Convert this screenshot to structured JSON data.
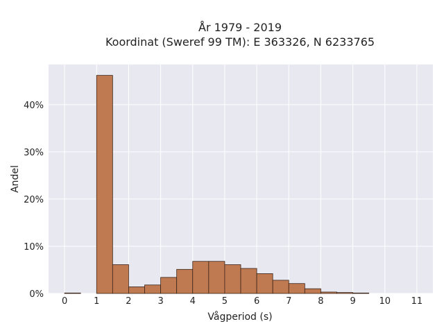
{
  "chart_data": {
    "type": "bar",
    "title_lines": [
      "År 1979 - 2019",
      "Koordinat (Sweref 99 TM): E 363326, N 6233765"
    ],
    "xlabel": "Vågperiod (s)",
    "ylabel": "Andel",
    "bin_width": 0.5,
    "bin_edges": [
      0,
      0.5,
      1,
      1.5,
      2,
      2.5,
      3,
      3.5,
      4,
      4.5,
      5,
      5.5,
      6,
      6.5,
      7,
      7.5,
      8,
      8.5,
      9,
      9.5
    ],
    "values": [
      0.1,
      0,
      46.2,
      6.1,
      1.4,
      1.8,
      3.4,
      5.1,
      6.8,
      6.8,
      6.1,
      5.3,
      4.2,
      2.8,
      2.1,
      1.0,
      0.3,
      0.2,
      0.1
    ],
    "xlim": [
      -0.5,
      11.5
    ],
    "ylim": [
      0,
      48.5
    ],
    "x_ticks": [
      "0",
      "1",
      "2",
      "3",
      "4",
      "5",
      "6",
      "7",
      "8",
      "9",
      "10",
      "11"
    ],
    "y_ticks": [
      "0%",
      "10%",
      "20%",
      "30%",
      "40%"
    ],
    "y_tick_values": [
      0,
      10,
      20,
      30,
      40
    ],
    "grid": true,
    "colors": {
      "bar": "#c07a52",
      "bar_edge": "#3a2418",
      "plot_bg": "#e8e8f0",
      "grid": "#ffffff"
    }
  }
}
